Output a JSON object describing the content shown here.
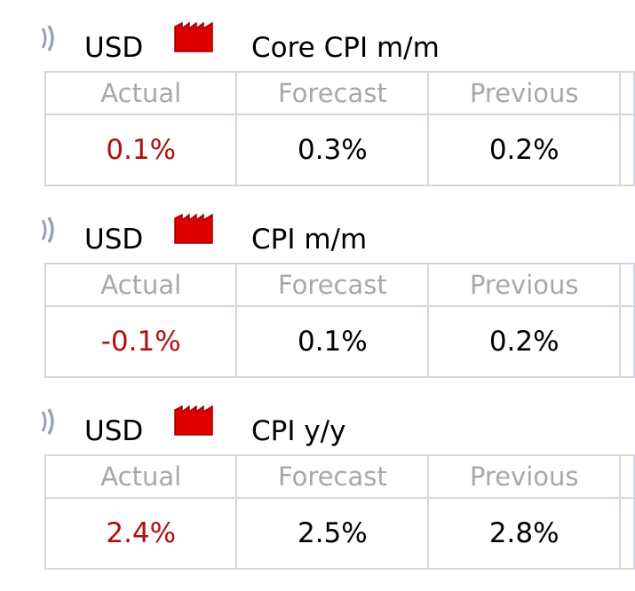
{
  "events": [
    {
      "currency": "USD",
      "name": "Core CPI m/m",
      "columns": [
        "Actual",
        "Forecast",
        "Previous"
      ],
      "values": [
        "0.1%",
        "0.3%",
        "0.2%"
      ]
    },
    {
      "currency": "USD",
      "name": "CPI m/m",
      "columns": [
        "Actual",
        "Forecast",
        "Previous"
      ],
      "values": [
        "-0.1%",
        "0.1%",
        "0.2%"
      ]
    },
    {
      "currency": "USD",
      "name": "CPI y/y",
      "columns": [
        "Actual",
        "Forecast",
        "Previous"
      ],
      "values": [
        "2.4%",
        "2.5%",
        "2.8%"
      ]
    }
  ]
}
